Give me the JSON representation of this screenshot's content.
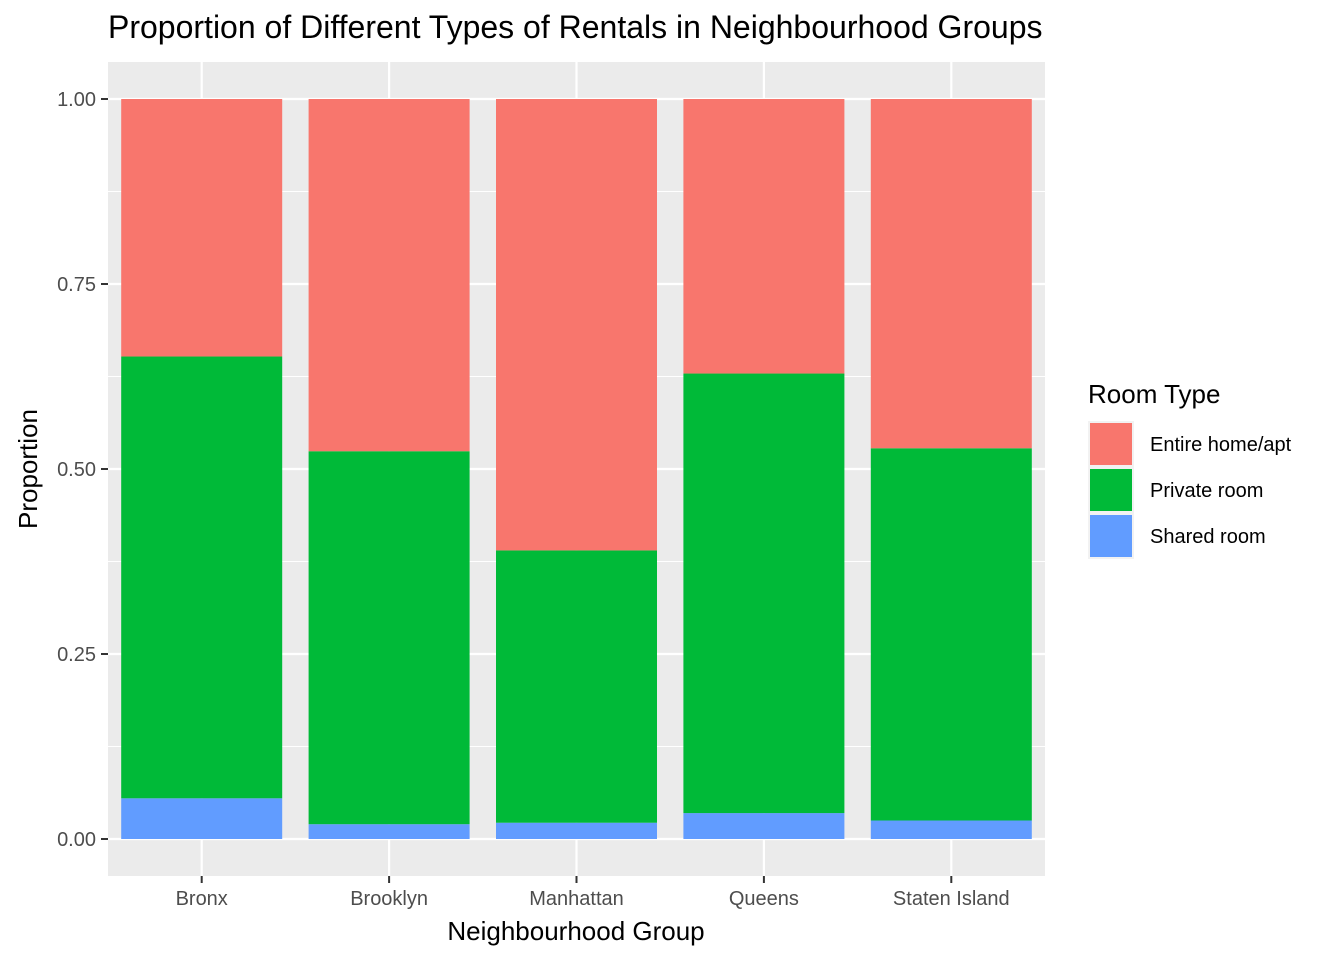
{
  "chart_data": {
    "type": "bar",
    "stacked": true,
    "title": "Proportion of Different Types of Rentals in Neighbourhood Groups",
    "xlabel": "Neighbourhood Group",
    "ylabel": "Proportion",
    "categories": [
      "Bronx",
      "Brooklyn",
      "Manhattan",
      "Queens",
      "Staten Island"
    ],
    "ylim": [
      0,
      1
    ],
    "yticks": [
      "0.00",
      "0.25",
      "0.50",
      "0.75",
      "1.00"
    ],
    "grid": true,
    "legend": {
      "title": "Room Type",
      "position": "right"
    },
    "series": [
      {
        "name": "Shared room",
        "color": "#619CFF",
        "values": [
          0.055,
          0.02,
          0.022,
          0.035,
          0.025
        ]
      },
      {
        "name": "Private room",
        "color": "#00BA38",
        "values": [
          0.597,
          0.504,
          0.368,
          0.594,
          0.503
        ]
      },
      {
        "name": "Entire home/apt",
        "color": "#F8766D",
        "values": [
          0.348,
          0.476,
          0.61,
          0.371,
          0.472
        ]
      }
    ],
    "legend_order": [
      "Entire home/apt",
      "Private room",
      "Shared room"
    ]
  }
}
